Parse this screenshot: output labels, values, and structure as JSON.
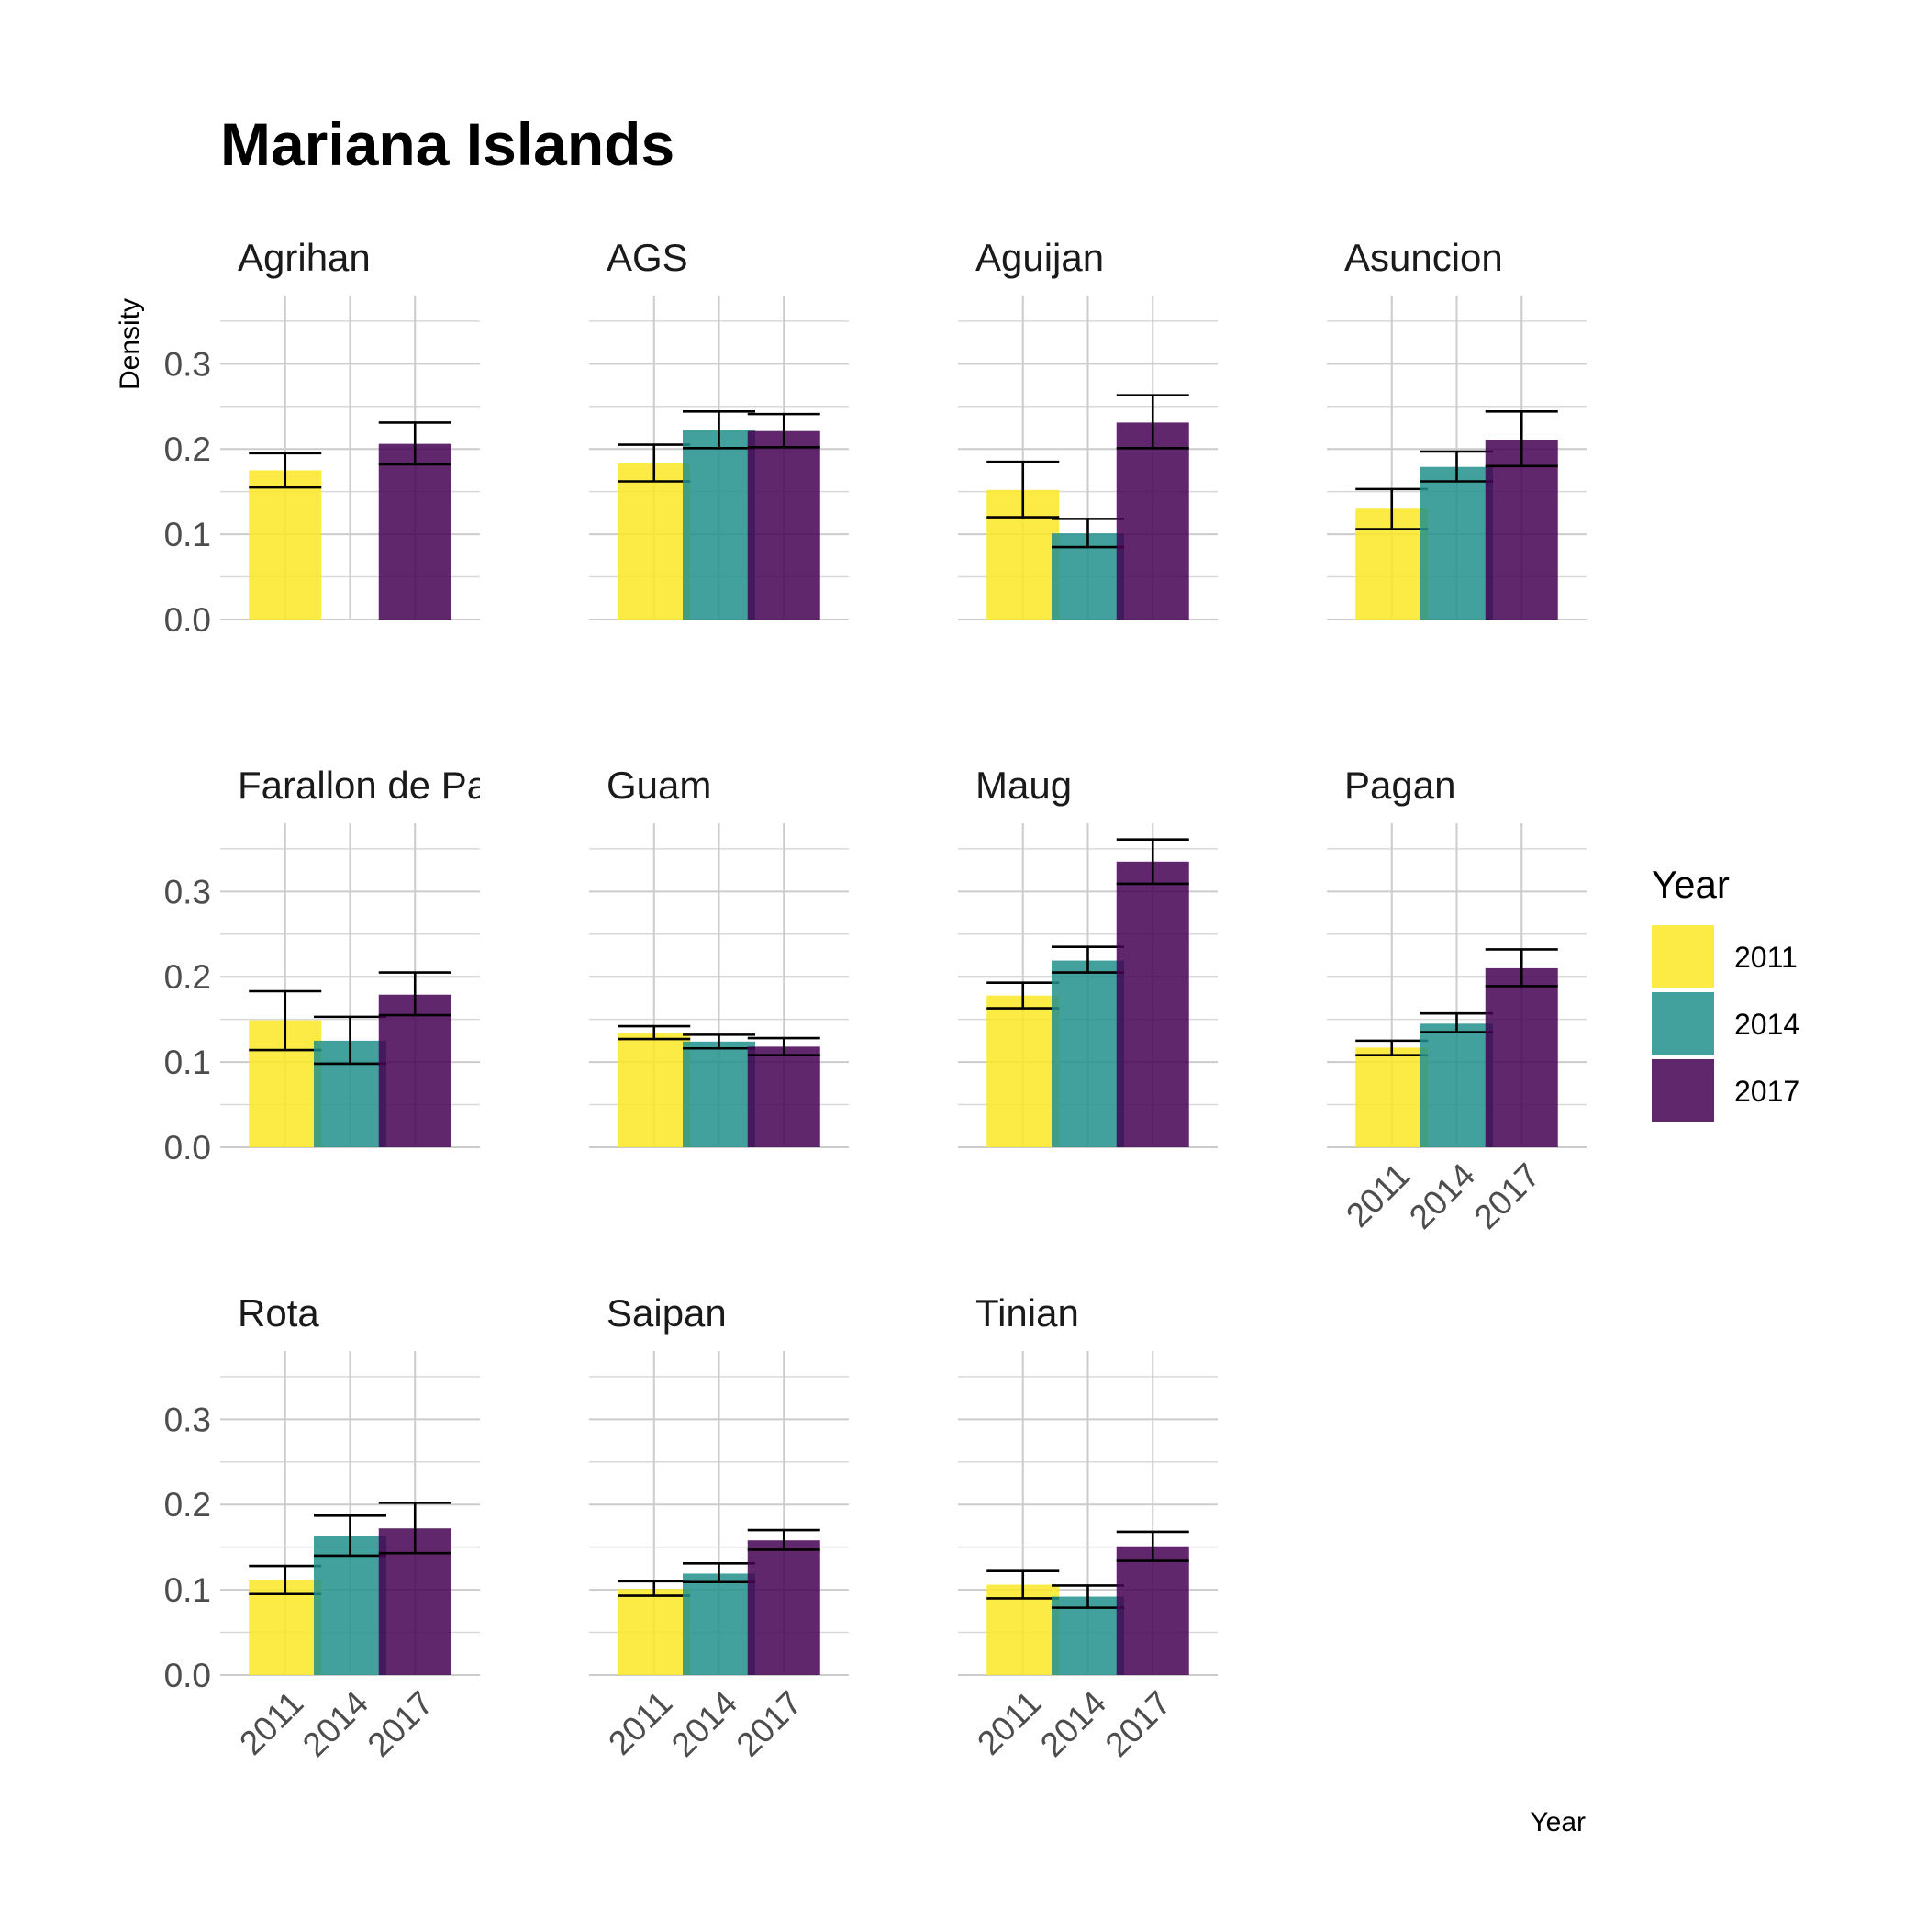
{
  "chart_data": {
    "type": "bar",
    "title": "Mariana Islands",
    "xlabel": "Year",
    "ylabel": "Density",
    "ylim": [
      0,
      0.38
    ],
    "y_ticks": [
      "0.0",
      "0.1",
      "0.2",
      "0.3"
    ],
    "categories": [
      "2011",
      "2014",
      "2017"
    ],
    "legend": {
      "title": "Year",
      "position": "right",
      "entries": [
        "2011",
        "2014",
        "2017"
      ]
    },
    "colors": {
      "2011": "#FDE725",
      "2014": "#21908C",
      "2017": "#440154"
    },
    "grid": true,
    "facet_columns": 4,
    "panels": [
      {
        "name": "Agrihan",
        "values": [
          0.175,
          null,
          0.206
        ],
        "errors": [
          [
            0.155,
            0.195
          ],
          null,
          [
            0.182,
            0.231
          ]
        ]
      },
      {
        "name": "AGS",
        "values": [
          0.183,
          0.222,
          0.221
        ],
        "errors": [
          [
            0.162,
            0.205
          ],
          [
            0.201,
            0.244
          ],
          [
            0.202,
            0.241
          ]
        ]
      },
      {
        "name": "Aguijan",
        "values": [
          0.152,
          0.101,
          0.231
        ],
        "errors": [
          [
            0.12,
            0.185
          ],
          [
            0.085,
            0.118
          ],
          [
            0.201,
            0.263
          ]
        ]
      },
      {
        "name": "Asuncion",
        "values": [
          0.13,
          0.179,
          0.211
        ],
        "errors": [
          [
            0.106,
            0.153
          ],
          [
            0.162,
            0.197
          ],
          [
            0.18,
            0.244
          ]
        ]
      },
      {
        "name": "Farallon de Pa",
        "values": [
          0.149,
          0.125,
          0.179
        ],
        "errors": [
          [
            0.114,
            0.183
          ],
          [
            0.098,
            0.153
          ],
          [
            0.155,
            0.205
          ]
        ]
      },
      {
        "name": "Guam",
        "values": [
          0.134,
          0.124,
          0.118
        ],
        "errors": [
          [
            0.127,
            0.142
          ],
          [
            0.116,
            0.132
          ],
          [
            0.108,
            0.128
          ]
        ]
      },
      {
        "name": "Maug",
        "values": [
          0.178,
          0.219,
          0.335
        ],
        "errors": [
          [
            0.163,
            0.193
          ],
          [
            0.205,
            0.235
          ],
          [
            0.309,
            0.361
          ]
        ]
      },
      {
        "name": "Pagan",
        "values": [
          0.117,
          0.145,
          0.21
        ],
        "errors": [
          [
            0.108,
            0.125
          ],
          [
            0.135,
            0.157
          ],
          [
            0.189,
            0.232
          ]
        ]
      },
      {
        "name": "Rota",
        "values": [
          0.112,
          0.163,
          0.172
        ],
        "errors": [
          [
            0.095,
            0.128
          ],
          [
            0.14,
            0.187
          ],
          [
            0.143,
            0.202
          ]
        ]
      },
      {
        "name": "Saipan",
        "values": [
          0.101,
          0.119,
          0.158
        ],
        "errors": [
          [
            0.093,
            0.11
          ],
          [
            0.109,
            0.131
          ],
          [
            0.147,
            0.17
          ]
        ]
      },
      {
        "name": "Tinian",
        "values": [
          0.106,
          0.092,
          0.151
        ],
        "errors": [
          [
            0.09,
            0.122
          ],
          [
            0.079,
            0.105
          ],
          [
            0.134,
            0.168
          ]
        ]
      }
    ]
  }
}
